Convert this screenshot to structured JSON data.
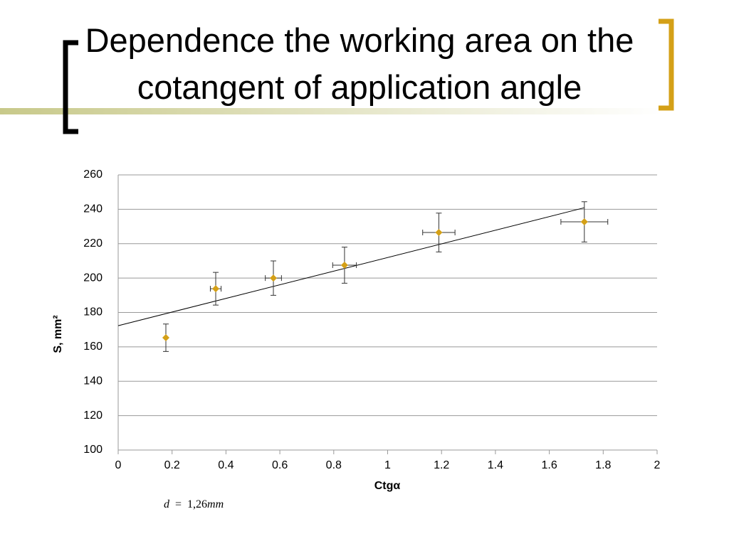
{
  "chart_data": {
    "type": "scatter",
    "title": "Dependence the working area on the cotangent of application angle",
    "x_label": "Ctgα",
    "y_label": "S, mm²",
    "x": [
      0.177,
      0.362,
      0.576,
      0.84,
      1.19,
      1.73
    ],
    "values": [
      165.3,
      193.8,
      200,
      207.5,
      226.5,
      232.7
    ],
    "errors": [
      8,
      9.5,
      10,
      10.5,
      11.3,
      11.7
    ],
    "x_errors": [
      0,
      0.02,
      0.03,
      0.044,
      0.06,
      0.087
    ],
    "color": "#d4a017",
    "trendline": {
      "x": [
        0,
        1.73
      ],
      "values": [
        172.3,
        240.9
      ]
    },
    "xlim": [
      0,
      2
    ],
    "xticks": [
      0,
      0.2,
      0.4,
      0.6,
      0.8,
      1,
      1.2,
      1.4,
      1.6,
      1.8,
      2
    ],
    "ylim": [
      100,
      260
    ],
    "yticks": [
      100,
      120,
      140,
      160,
      180,
      200,
      220,
      240,
      260
    ],
    "grid": true,
    "annotation": {
      "variable": "d",
      "sign": "=",
      "value": "1,26",
      "unit": "mm"
    }
  }
}
